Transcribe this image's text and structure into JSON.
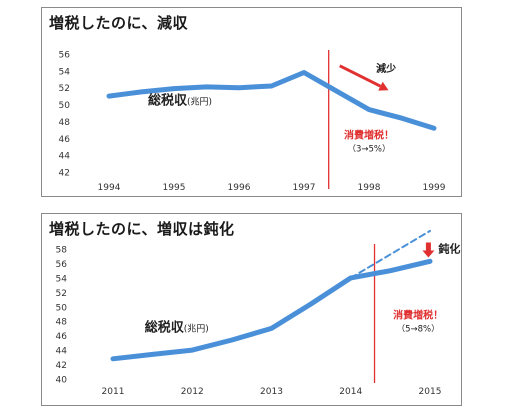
{
  "chart_data": [
    {
      "type": "line",
      "title": "増税したのに、減収",
      "xlabel": "",
      "ylabel": "",
      "categories": [
        "1994",
        "1995",
        "1996",
        "1997",
        "1998",
        "1999"
      ],
      "ylim": [
        42,
        56
      ],
      "yticks": [
        42,
        44,
        46,
        48,
        50,
        52,
        54,
        56
      ],
      "series": [
        {
          "name": "総税収",
          "color": "#4a90d9",
          "points": [
            {
              "x": 1994.0,
              "y": 51.0
            },
            {
              "x": 1994.5,
              "y": 51.5
            },
            {
              "x": 1995.0,
              "y": 51.9
            },
            {
              "x": 1995.5,
              "y": 52.1
            },
            {
              "x": 1996.0,
              "y": 52.0
            },
            {
              "x": 1996.5,
              "y": 52.2
            },
            {
              "x": 1997.0,
              "y": 53.8
            },
            {
              "x": 1997.5,
              "y": 51.6
            },
            {
              "x": 1998.0,
              "y": 49.4
            },
            {
              "x": 1998.5,
              "y": 48.4
            },
            {
              "x": 1999.0,
              "y": 47.2
            }
          ]
        }
      ],
      "series_label": {
        "main": "総税収",
        "unit": "(兆円)",
        "at": {
          "x": 1994.6,
          "y": 50.0
        }
      },
      "event_line": {
        "x": 1997.38,
        "color": "#e03030"
      },
      "event_label": {
        "main": "消費増税！",
        "sub": "（3→5%）",
        "at": {
          "x": 1998.0,
          "y": 46.0
        }
      },
      "trend_arrow": {
        "from": {
          "x": 1997.55,
          "y": 54.6
        },
        "to": {
          "x": 1998.3,
          "y": 51.7
        },
        "color": "#e03030",
        "label": "減少"
      }
    },
    {
      "type": "line",
      "title": "増税したのに、増収は鈍化",
      "xlabel": "",
      "ylabel": "",
      "categories": [
        "2011",
        "2012",
        "2013",
        "2014",
        "2015"
      ],
      "ylim": [
        40,
        58
      ],
      "yticks": [
        40,
        42,
        44,
        46,
        48,
        50,
        52,
        54,
        56,
        58
      ],
      "series": [
        {
          "name": "総税収",
          "color": "#4a90d9",
          "points": [
            {
              "x": 2011.0,
              "y": 42.8
            },
            {
              "x": 2011.5,
              "y": 43.4
            },
            {
              "x": 2012.0,
              "y": 44.0
            },
            {
              "x": 2012.5,
              "y": 45.4
            },
            {
              "x": 2013.0,
              "y": 47.0
            },
            {
              "x": 2013.5,
              "y": 50.4
            },
            {
              "x": 2014.0,
              "y": 54.0
            },
            {
              "x": 2014.5,
              "y": 55.0
            },
            {
              "x": 2015.0,
              "y": 56.3
            }
          ]
        },
        {
          "name": "",
          "style": "dashed",
          "color": "#4a90d9",
          "points": [
            {
              "x": 2014.0,
              "y": 54.0
            },
            {
              "x": 2015.0,
              "y": 60.5
            }
          ]
        }
      ],
      "series_label": {
        "main": "総税収",
        "unit": "(兆円)",
        "at": {
          "x": 2011.4,
          "y": 46.6
        }
      },
      "event_line": {
        "x": 2014.3,
        "color": "#e03030"
      },
      "event_label": {
        "main": "消費増税！",
        "sub": "（5→8%）",
        "at": {
          "x": 2014.85,
          "y": 48.4
        }
      },
      "down_arrow": {
        "at": {
          "x": 2014.98,
          "y": 58.9
        },
        "color": "#e03030",
        "label": "鈍化"
      }
    }
  ]
}
